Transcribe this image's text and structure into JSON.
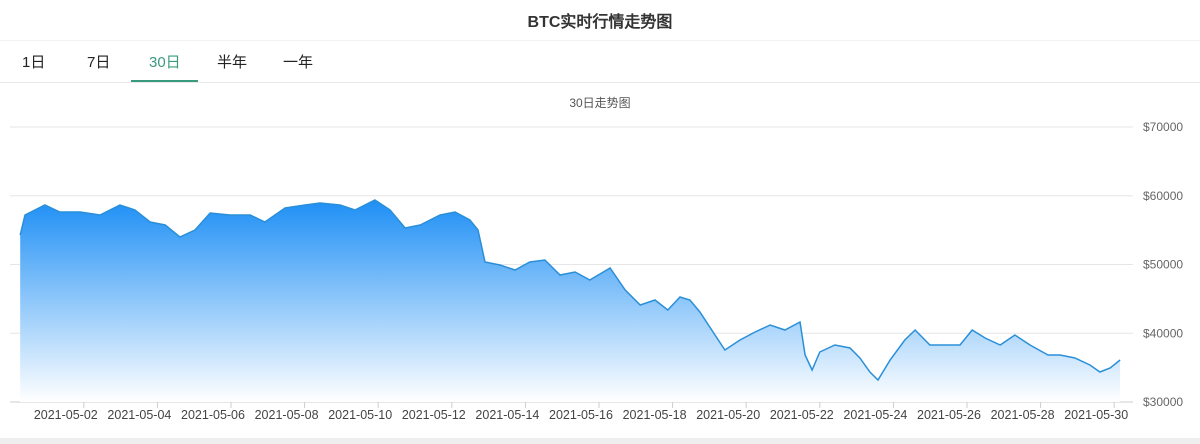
{
  "header": {
    "title": "BTC实时行情走势图"
  },
  "tabs": [
    {
      "label": "1日"
    },
    {
      "label": "7日"
    },
    {
      "label": "30日"
    },
    {
      "label": "半年"
    },
    {
      "label": "一年"
    }
  ],
  "active_tab": "30日",
  "chart_data": {
    "type": "area",
    "title": "30日走势图",
    "xlabel": "",
    "ylabel": "",
    "ylim": [
      30000,
      70000
    ],
    "y_ticks": [
      "$30000",
      "$40000",
      "$50000",
      "$60000",
      "$70000"
    ],
    "y_tick_values": [
      30000,
      40000,
      50000,
      60000,
      70000
    ],
    "x_ticks": [
      "2021-05-02",
      "2021-05-04",
      "2021-05-06",
      "2021-05-08",
      "2021-05-10",
      "2021-05-12",
      "2021-05-14",
      "2021-05-16",
      "2021-05-18",
      "2021-05-20",
      "2021-05-22",
      "2021-05-24",
      "2021-05-26",
      "2021-05-28",
      "2021-05-30"
    ],
    "x_tick_days": [
      2,
      4,
      6,
      8,
      10,
      12,
      14,
      16,
      18,
      20,
      22,
      24,
      26,
      28,
      30
    ],
    "x_unit": "day of May 2021",
    "grid": true,
    "series": [
      {
        "name": "BTC",
        "color": "#2a8fd8",
        "points": [
          [
            0.76,
            54290
          ],
          [
            0.89,
            57200
          ],
          [
            1.16,
            57930
          ],
          [
            1.43,
            58650
          ],
          [
            1.84,
            57640
          ],
          [
            2.39,
            57640
          ],
          [
            2.93,
            57200
          ],
          [
            3.47,
            58650
          ],
          [
            3.88,
            57930
          ],
          [
            4.29,
            56180
          ],
          [
            4.7,
            55750
          ],
          [
            5.1,
            54000
          ],
          [
            5.51,
            55020
          ],
          [
            5.92,
            57490
          ],
          [
            6.46,
            57200
          ],
          [
            7.01,
            57200
          ],
          [
            7.41,
            56180
          ],
          [
            7.96,
            58220
          ],
          [
            8.5,
            58650
          ],
          [
            8.91,
            58950
          ],
          [
            9.45,
            58650
          ],
          [
            9.86,
            57930
          ],
          [
            10.4,
            59380
          ],
          [
            10.81,
            57930
          ],
          [
            11.22,
            55310
          ],
          [
            11.63,
            55750
          ],
          [
            12.17,
            57200
          ],
          [
            12.58,
            57640
          ],
          [
            12.98,
            56470
          ],
          [
            13.2,
            55020
          ],
          [
            13.39,
            50360
          ],
          [
            13.8,
            49930
          ],
          [
            14.21,
            49200
          ],
          [
            14.61,
            50360
          ],
          [
            15.02,
            50650
          ],
          [
            15.43,
            48470
          ],
          [
            15.84,
            48910
          ],
          [
            16.24,
            47750
          ],
          [
            16.79,
            49490
          ],
          [
            17.2,
            46290
          ],
          [
            17.61,
            44110
          ],
          [
            18.01,
            44840
          ],
          [
            18.36,
            43380
          ],
          [
            18.69,
            45270
          ],
          [
            18.96,
            44840
          ],
          [
            19.23,
            43090
          ],
          [
            19.64,
            39750
          ],
          [
            19.91,
            37560
          ],
          [
            20.32,
            39020
          ],
          [
            20.73,
            40180
          ],
          [
            21.14,
            41200
          ],
          [
            21.54,
            40470
          ],
          [
            21.95,
            41640
          ],
          [
            22.09,
            36840
          ],
          [
            22.28,
            34660
          ],
          [
            22.49,
            37270
          ],
          [
            22.9,
            38290
          ],
          [
            23.31,
            37850
          ],
          [
            23.58,
            36400
          ],
          [
            23.85,
            34370
          ],
          [
            24.07,
            33200
          ],
          [
            24.4,
            36110
          ],
          [
            24.8,
            39020
          ],
          [
            25.08,
            40470
          ],
          [
            25.48,
            38290
          ],
          [
            25.89,
            38290
          ],
          [
            26.3,
            38290
          ],
          [
            26.63,
            40470
          ],
          [
            26.98,
            39310
          ],
          [
            27.39,
            38290
          ],
          [
            27.79,
            39750
          ],
          [
            28.2,
            38290
          ],
          [
            28.69,
            36840
          ],
          [
            29.02,
            36840
          ],
          [
            29.42,
            36400
          ],
          [
            29.83,
            35380
          ],
          [
            30.1,
            34370
          ],
          [
            30.38,
            34950
          ],
          [
            30.65,
            36110
          ]
        ]
      }
    ]
  }
}
